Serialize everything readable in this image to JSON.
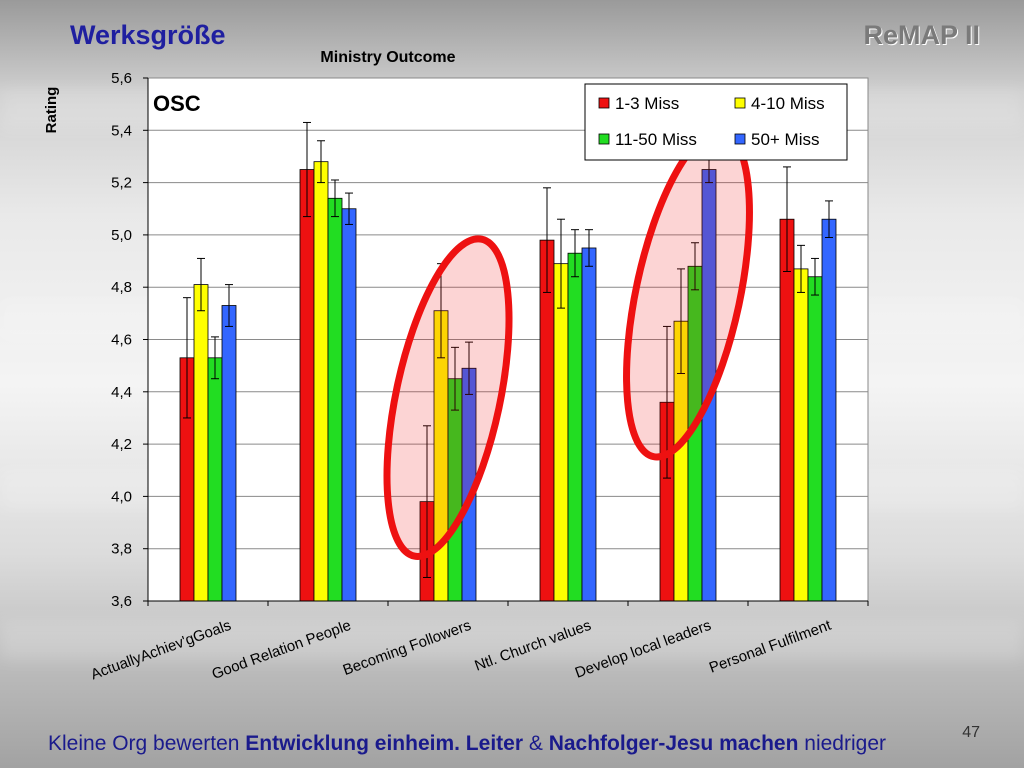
{
  "slide": {
    "title": "Werksgröße",
    "brand": "ReMAP II",
    "page_number": "47",
    "caption": {
      "part1": "Kleine Org bewerten ",
      "part2": "Entwicklung einheim. Leiter",
      "part3": " & ",
      "part4": "Nachfolger-Jesu machen",
      "part5": " niedriger"
    }
  },
  "chart_data": {
    "type": "bar",
    "title": "Ministry Outcome",
    "subtitle": "OSC",
    "xlabel": "",
    "ylabel": "Rating",
    "ylim": [
      3.6,
      5.6
    ],
    "yticks": [
      "3,6",
      "3,8",
      "4,0",
      "4,2",
      "4,4",
      "4,6",
      "4,8",
      "5,0",
      "5,2",
      "5,4",
      "5,6"
    ],
    "grid": true,
    "legend_position": "top-right",
    "categories": [
      "ActuallyAchiev'gGoals",
      "Good Relation People",
      "Becoming Followers",
      "Ntl. Church values",
      "Develop local leaders",
      "Personal Fulfilment"
    ],
    "series": [
      {
        "name": "1-3 Miss",
        "color": "#ee1111",
        "values": [
          4.53,
          5.25,
          3.98,
          4.98,
          4.36,
          5.06
        ],
        "errors": [
          0.23,
          0.18,
          0.29,
          0.2,
          0.29,
          0.2
        ]
      },
      {
        "name": "4-10 Miss",
        "color": "#ffff00",
        "values": [
          4.81,
          5.28,
          4.71,
          4.89,
          4.67,
          4.87
        ],
        "errors": [
          0.1,
          0.08,
          0.18,
          0.17,
          0.2,
          0.09
        ]
      },
      {
        "name": "11-50 Miss",
        "color": "#22dd22",
        "values": [
          4.53,
          5.14,
          4.45,
          4.93,
          4.88,
          4.84
        ],
        "errors": [
          0.08,
          0.07,
          0.12,
          0.09,
          0.09,
          0.07
        ]
      },
      {
        "name": "50+ Miss",
        "color": "#3366ff",
        "values": [
          4.73,
          5.1,
          4.49,
          4.95,
          5.25,
          5.06
        ],
        "errors": [
          0.08,
          0.06,
          0.1,
          0.07,
          0.05,
          0.07
        ]
      }
    ],
    "highlighted_categories": [
      "Becoming Followers",
      "Develop local leaders"
    ],
    "highlight_color": "#ee1111"
  }
}
